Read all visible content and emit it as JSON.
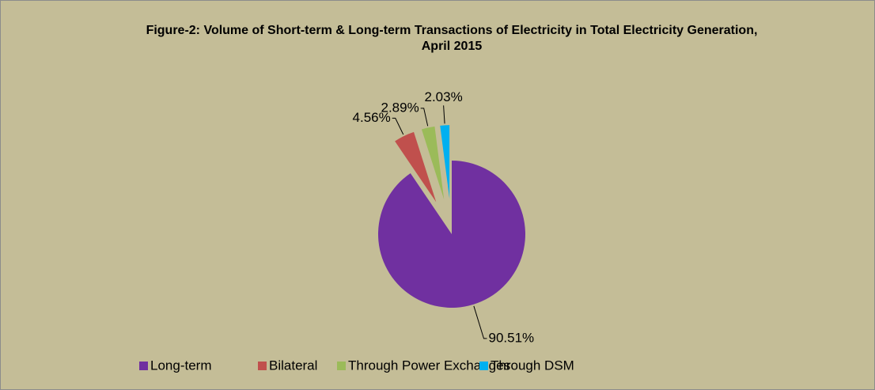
{
  "chart_data": {
    "type": "pie",
    "title": "Figure-2: Volume of Short-term & Long-term Transactions of Electricity in Total Electricity Generation, April 2015",
    "categories": [
      "Long-term",
      "Bilateral",
      "Through Power Exchanges",
      "Through DSM"
    ],
    "values": [
      90.51,
      4.56,
      2.89,
      2.03
    ],
    "value_labels": [
      "90.51%",
      "4.56%",
      "2.89%",
      "2.03%"
    ],
    "colors": [
      "#7030a0",
      "#c0504d",
      "#9bbb59",
      "#00b0f0"
    ],
    "legend": "bottom"
  }
}
